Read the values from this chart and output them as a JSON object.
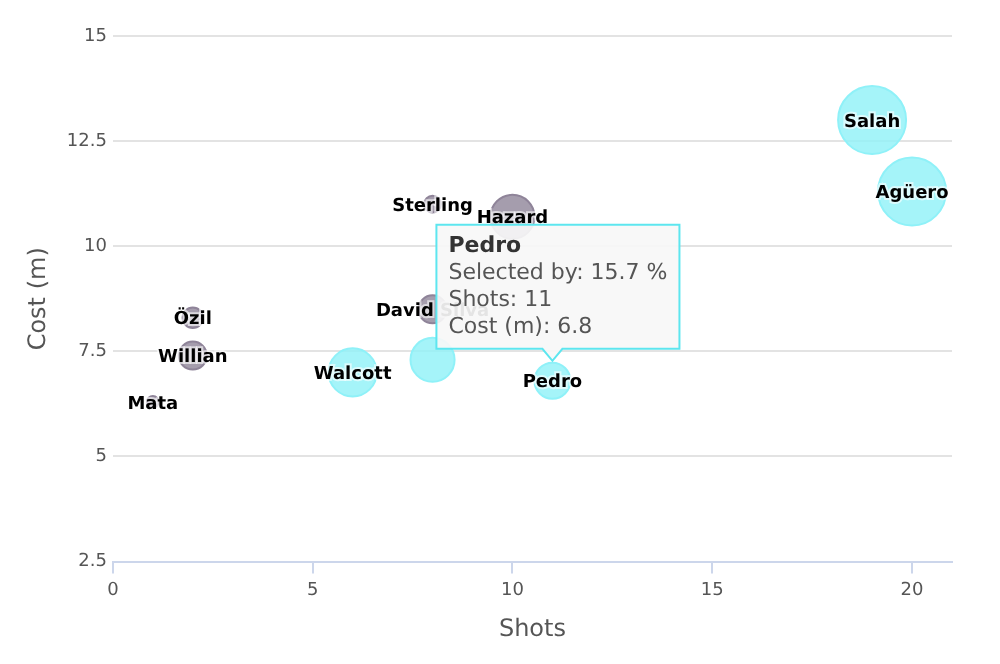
{
  "chart_data": {
    "type": "bubble",
    "xlabel": "Shots",
    "ylabel": "Cost (m)",
    "xlim": [
      0,
      21
    ],
    "xticks": [
      0,
      5,
      10,
      15,
      20
    ],
    "ylim": [
      2.5,
      15
    ],
    "yticks": [
      2.5,
      5,
      7.5,
      10,
      12.5,
      15
    ],
    "grid": "y",
    "legend": false,
    "series": [
      {
        "x": [
          1,
          2,
          2,
          6,
          8,
          8,
          8,
          10,
          11,
          19,
          20
        ],
        "values": [
          6.3,
          8.3,
          7.4,
          7.0,
          7.3,
          8.5,
          11.0,
          10.7,
          6.8,
          13.0,
          11.3
        ],
        "sizes": [
          0.03,
          0.09,
          0.17,
          0.5,
          0.42,
          0.17,
          0.06,
          0.42,
          0.28,
          1,
          1
        ],
        "colors": [
          "#8f8499",
          "#8f8499",
          "#8f8499",
          "#8ff1f8",
          "#8ff1f8",
          "#8f8499",
          "#8f8499",
          "#8f8499",
          "#8ff1f8",
          "#8ff1f8",
          "#8ff1f8"
        ],
        "value_labels": [
          "Mata",
          "Özil",
          "Willian",
          "Walcott",
          null,
          "David Silva",
          "Sterling",
          "Hazard",
          "Pedro",
          "Salah",
          "Agüero"
        ]
      }
    ],
    "annotations": [
      {
        "text": "Pedro\nSelected by: 15.7 %\nShots: 11\nCost (m): 6.8",
        "x": 11,
        "y": 6.8
      }
    ]
  }
}
